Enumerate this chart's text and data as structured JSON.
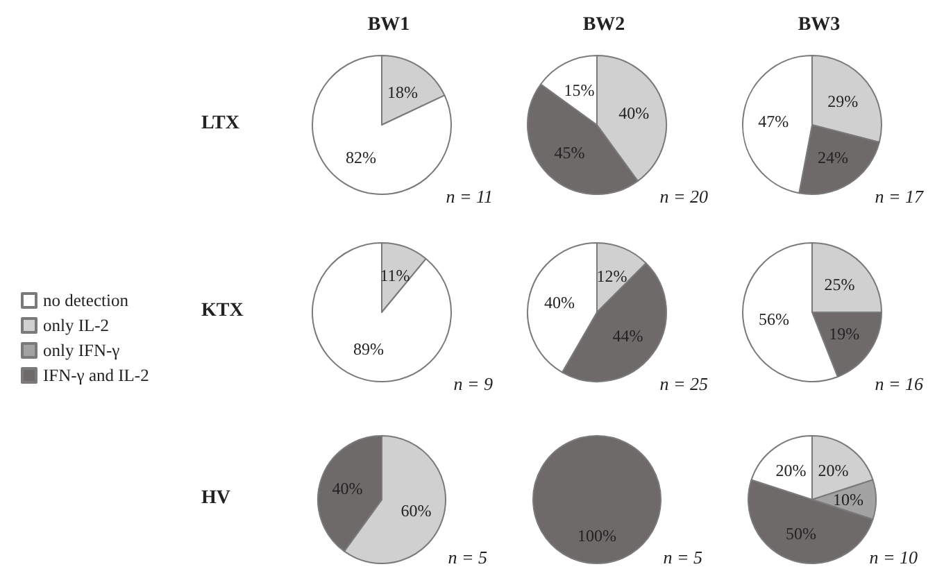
{
  "chart_data": [
    {
      "type": "pie",
      "title": "BW1",
      "ylabel": "LTX",
      "categories": [
        null,
        null
      ],
      "values": [
        18,
        82
      ],
      "value_labels": [
        "18%",
        "82%"
      ],
      "colors": [
        "#d0d0d0",
        "#ffffff"
      ],
      "annotations": [
        "n = 11"
      ]
    },
    {
      "type": "pie",
      "title": "BW2",
      "categories": [
        null,
        null,
        null
      ],
      "values": [
        40,
        45,
        15
      ],
      "value_labels": [
        "40%",
        "45%",
        "15%"
      ],
      "colors": [
        "#d0d0d0",
        "#6f6a6a",
        "#ffffff"
      ],
      "annotations": [
        "n = 20"
      ]
    },
    {
      "type": "pie",
      "title": "BW3",
      "categories": [
        null,
        null,
        null
      ],
      "values": [
        29,
        24,
        47
      ],
      "value_labels": [
        "29%",
        "24%",
        "47%"
      ],
      "colors": [
        "#d0d0d0",
        "#6f6a6a",
        "#ffffff"
      ],
      "annotations": [
        "n = 17"
      ]
    },
    {
      "type": "pie",
      "ylabel": "KTX",
      "categories": [
        "only IL-2",
        "only IFN-γ",
        "IFN-γ and IL-2",
        "no detection"
      ],
      "values": [
        11,
        null,
        null,
        89
      ],
      "value_labels": [
        "11%",
        null,
        null,
        "89%"
      ],
      "colors": [
        "#d0d0d0",
        "#a3a3a3",
        "#6f6a6a",
        "#ffffff"
      ],
      "annotations": [
        "n = 9"
      ],
      "legend": "left"
    },
    {
      "type": "pie",
      "categories": [
        null,
        null,
        null
      ],
      "values": [
        12,
        44,
        40
      ],
      "value_labels": [
        "12%",
        "44%",
        "40%"
      ],
      "colors": [
        "#d0d0d0",
        "#6f6a6a",
        "#ffffff"
      ],
      "annotations": [
        "n = 25"
      ]
    },
    {
      "type": "pie",
      "categories": [
        null,
        null,
        null
      ],
      "values": [
        25,
        19,
        56
      ],
      "value_labels": [
        "25%",
        "19%",
        "56%"
      ],
      "colors": [
        "#d0d0d0",
        "#6f6a6a",
        "#ffffff"
      ],
      "annotations": [
        "n = 16"
      ]
    },
    {
      "type": "pie",
      "ylabel": "HV",
      "categories": [
        null,
        null
      ],
      "values": [
        60,
        40
      ],
      "value_labels": [
        "60%",
        "40%"
      ],
      "colors": [
        "#d0d0d0",
        "#6f6a6a"
      ],
      "annotations": [
        "n = 5"
      ]
    },
    {
      "type": "pie",
      "categories": [
        null
      ],
      "values": [
        100
      ],
      "value_labels": [
        "100%"
      ],
      "colors": [
        "#6f6a6a"
      ],
      "annotations": [
        "n = 5"
      ]
    },
    {
      "type": "pie",
      "categories": [
        null,
        null,
        null,
        null
      ],
      "values": [
        20,
        10,
        50,
        20
      ],
      "value_labels": [
        "20%",
        "10%",
        "50%",
        "20%"
      ],
      "colors": [
        "#d0d0d0",
        "#a3a3a3",
        "#6f6a6a",
        "#ffffff"
      ],
      "annotations": [
        "n = 10"
      ]
    }
  ]
}
